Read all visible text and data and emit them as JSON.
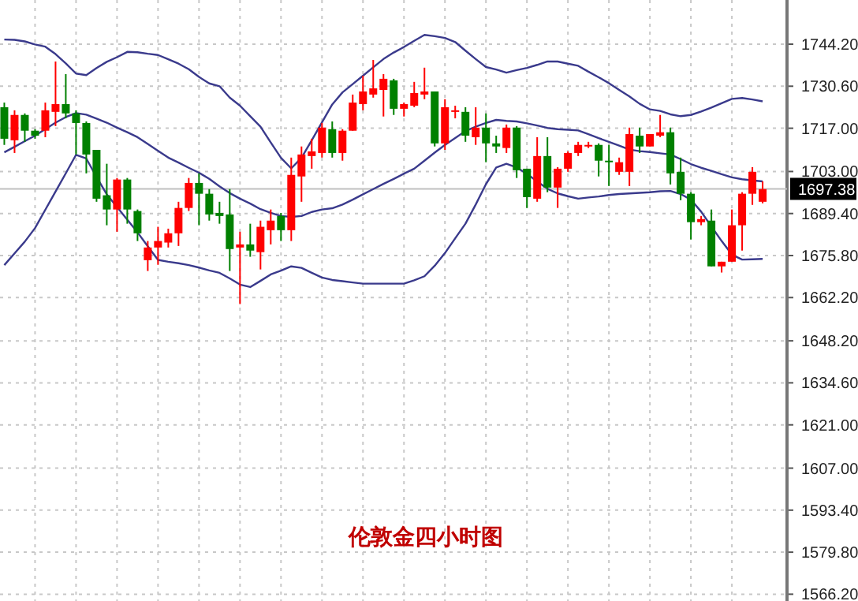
{
  "chart_data": {
    "type": "candlestick",
    "title": "伦敦金四小时图",
    "categories": [
      null,
      null,
      null,
      null,
      null,
      null,
      null,
      null,
      null,
      null,
      null,
      null,
      null,
      null,
      null,
      null,
      null,
      null,
      null,
      null,
      null,
      null,
      null,
      null,
      null,
      null,
      null,
      null,
      null,
      null,
      null,
      null,
      null,
      null,
      null,
      null,
      null,
      null,
      null,
      null,
      null,
      null,
      null,
      null,
      null,
      null,
      null,
      null,
      null,
      null,
      null,
      null,
      null,
      null,
      null,
      null,
      null,
      null,
      null,
      null,
      null,
      null,
      null,
      null,
      null,
      null,
      null,
      null,
      null,
      null,
      null,
      null,
      null,
      null,
      null
    ],
    "ohlc": [
      [
        1723.8,
        1725.3,
        1711.6,
        1713.6
      ],
      [
        1713.1,
        1722.8,
        1709.0,
        1721.3
      ],
      [
        1721.3,
        1721.8,
        1712.6,
        1716.2
      ],
      [
        1716.2,
        1716.7,
        1713.6,
        1714.6
      ],
      [
        1716.2,
        1725.3,
        1714.1,
        1722.8
      ],
      [
        1722.3,
        1738.6,
        1717.7,
        1724.8
      ],
      [
        1724.8,
        1734.5,
        1720.2,
        1721.8
      ],
      [
        1721.8,
        1722.8,
        1708.5,
        1718.7
      ],
      [
        1718.7,
        1719.2,
        1702.4,
        1708.5
      ],
      [
        1710.0,
        1710.0,
        1693.2,
        1694.2
      ],
      [
        1695.3,
        1705.5,
        1685.6,
        1690.7
      ],
      [
        1690.7,
        1700.9,
        1683.5,
        1700.4
      ],
      [
        1700.4,
        1700.9,
        1686.1,
        1690.7
      ],
      [
        1690.2,
        1690.7,
        1680.5,
        1683.0
      ],
      [
        1674.3,
        1680.5,
        1670.8,
        1678.4
      ],
      [
        1678.4,
        1685.1,
        1672.8,
        1680.5
      ],
      [
        1680.0,
        1684.5,
        1678.4,
        1683.0
      ],
      [
        1683.0,
        1693.2,
        1678.9,
        1691.2
      ],
      [
        1691.2,
        1700.9,
        1690.2,
        1699.3
      ],
      [
        1699.3,
        1702.4,
        1685.6,
        1695.8
      ],
      [
        1695.8,
        1697.3,
        1687.1,
        1689.1
      ],
      [
        1689.6,
        1693.2,
        1686.1,
        1688.6
      ],
      [
        1689.1,
        1697.3,
        1670.8,
        1677.9
      ],
      [
        1678.4,
        1683.5,
        1660.1,
        1679.4
      ],
      [
        1679.4,
        1686.1,
        1675.4,
        1677.4
      ],
      [
        1676.9,
        1687.1,
        1671.3,
        1685.1
      ],
      [
        1684.0,
        1690.7,
        1679.4,
        1687.1
      ],
      [
        1688.6,
        1689.6,
        1680.5,
        1684.0
      ],
      [
        1684.0,
        1707.5,
        1680.5,
        1701.9
      ],
      [
        1701.4,
        1711.1,
        1693.2,
        1708.5
      ],
      [
        1708.0,
        1713.6,
        1703.9,
        1709.5
      ],
      [
        1709.0,
        1718.7,
        1707.5,
        1717.2
      ],
      [
        1716.7,
        1719.2,
        1707.5,
        1709.0
      ],
      [
        1709.0,
        1716.7,
        1706.5,
        1716.2
      ],
      [
        1716.2,
        1727.9,
        1716.2,
        1725.3
      ],
      [
        1724.8,
        1734.0,
        1722.8,
        1728.9
      ],
      [
        1727.9,
        1739.1,
        1726.9,
        1729.9
      ],
      [
        1729.4,
        1734.5,
        1720.8,
        1733.0
      ],
      [
        1732.5,
        1733.0,
        1721.3,
        1723.3
      ],
      [
        1723.3,
        1725.3,
        1720.8,
        1724.8
      ],
      [
        1724.3,
        1732.0,
        1723.8,
        1728.4
      ],
      [
        1727.9,
        1736.6,
        1726.4,
        1728.9
      ],
      [
        1728.9,
        1728.9,
        1711.1,
        1712.1
      ],
      [
        1712.1,
        1726.4,
        1710.0,
        1723.8
      ],
      [
        1722.3,
        1724.3,
        1720.2,
        1722.8
      ],
      [
        1722.3,
        1723.8,
        1712.6,
        1714.6
      ],
      [
        1714.1,
        1723.8,
        1711.6,
        1717.2
      ],
      [
        1717.2,
        1721.8,
        1706.0,
        1712.1
      ],
      [
        1712.1,
        1714.6,
        1709.0,
        1711.1
      ],
      [
        1710.6,
        1718.2,
        1709.0,
        1717.2
      ],
      [
        1717.2,
        1717.7,
        1700.9,
        1703.4
      ],
      [
        1703.9,
        1703.9,
        1691.2,
        1694.7
      ],
      [
        1694.2,
        1714.1,
        1693.2,
        1708.0
      ],
      [
        1708.0,
        1714.1,
        1696.3,
        1697.8
      ],
      [
        1697.8,
        1704.4,
        1691.2,
        1703.9
      ],
      [
        1703.9,
        1709.5,
        1702.9,
        1709.0
      ],
      [
        1709.0,
        1712.6,
        1708.0,
        1711.6
      ],
      [
        1711.1,
        1712.6,
        1710.6,
        1711.6
      ],
      [
        1711.6,
        1712.1,
        1701.4,
        1706.5
      ],
      [
        1706.5,
        1711.6,
        1698.3,
        1706.0
      ],
      [
        1702.9,
        1707.5,
        1701.9,
        1706.0
      ],
      [
        1702.9,
        1717.2,
        1698.3,
        1715.1
      ],
      [
        1714.6,
        1717.2,
        1709.0,
        1711.1
      ],
      [
        1711.1,
        1715.1,
        1711.1,
        1715.1
      ],
      [
        1714.6,
        1721.3,
        1714.1,
        1715.7
      ],
      [
        1715.7,
        1717.2,
        1698.8,
        1702.4
      ],
      [
        1702.9,
        1707.5,
        1693.7,
        1695.8
      ],
      [
        1695.8,
        1696.3,
        1681.0,
        1686.6
      ],
      [
        1686.6,
        1688.6,
        1685.6,
        1687.6
      ],
      [
        1687.1,
        1690.7,
        1672.3,
        1672.3
      ],
      [
        1672.3,
        1673.8,
        1670.3,
        1673.8
      ],
      [
        1673.8,
        1690.7,
        1673.8,
        1685.6
      ],
      [
        1685.6,
        1696.3,
        1677.4,
        1695.8
      ],
      [
        1695.8,
        1704.4,
        1692.2,
        1702.9
      ],
      [
        1693.2,
        1699.8,
        1692.7,
        1697.3
      ]
    ],
    "series": [
      {
        "type": "line",
        "color": "#3a3a8c",
        "values": [
          1745.7,
          1745.6,
          1745.1,
          1744.1,
          1743.4,
          1741.0,
          1738.0,
          1734.7,
          1734.2,
          1736.5,
          1738.5,
          1740.0,
          1741.7,
          1741.6,
          1741.1,
          1740.7,
          1739.3,
          1737.9,
          1736.1,
          1733.6,
          1731.5,
          1730.6,
          1726.9,
          1724.3,
          1720.9,
          1717.5,
          1712.4,
          1707.4,
          1704.0,
          1707.4,
          1713.1,
          1718.9,
          1724.7,
          1728.6,
          1731.3,
          1734.0,
          1736.7,
          1739.4,
          1741.5,
          1743.3,
          1745.3,
          1747.2,
          1746.8,
          1746.2,
          1744.9,
          1742.1,
          1739.4,
          1736.8,
          1736.0,
          1735.0,
          1735.8,
          1736.5,
          1737.5,
          1738.6,
          1738.6,
          1737.9,
          1737.2,
          1735.3,
          1733.5,
          1731.6,
          1729.4,
          1727.3,
          1724.9,
          1723.1,
          1722.6,
          1721.5,
          1720.9,
          1721.3,
          1722.4,
          1723.7,
          1725.1,
          1726.5,
          1726.8,
          1726.3,
          1725.7
        ]
      },
      {
        "type": "line",
        "color": "#3a3a8c",
        "values": [
          1709.2,
          1711.0,
          1712.8,
          1714.6,
          1716.7,
          1718.8,
          1720.6,
          1721.9,
          1721.4,
          1720.1,
          1718.8,
          1717.2,
          1715.7,
          1714.1,
          1711.9,
          1709.7,
          1707.5,
          1705.9,
          1704.2,
          1702.6,
          1700.6,
          1698.2,
          1696.0,
          1694.2,
          1692.6,
          1690.8,
          1689.6,
          1688.6,
          1688.3,
          1688.6,
          1689.9,
          1690.7,
          1691.1,
          1692.3,
          1693.9,
          1695.6,
          1697.3,
          1699.0,
          1700.6,
          1702.3,
          1703.9,
          1706.5,
          1709.1,
          1711.6,
          1713.8,
          1716.1,
          1717.5,
          1718.7,
          1719.7,
          1719.4,
          1719.2,
          1718.6,
          1717.9,
          1717.1,
          1716.7,
          1716.5,
          1716.3,
          1715.1,
          1713.8,
          1712.6,
          1711.4,
          1710.1,
          1709.6,
          1709.3,
          1708.9,
          1708.5,
          1707.0,
          1705.4,
          1704.2,
          1703.2,
          1702.1,
          1701.1,
          1700.5,
          1700.1,
          1699.8
        ]
      },
      {
        "type": "line",
        "color": "#3a3a8c",
        "values": [
          1672.7,
          1676.5,
          1680.3,
          1684.7,
          1690.6,
          1696.5,
          1702.4,
          1708.4,
          1707.2,
          1701.2,
          1695.6,
          1691.5,
          1687.4,
          1683.3,
          1678.8,
          1674.4,
          1673.8,
          1673.3,
          1672.7,
          1671.9,
          1671.0,
          1670.2,
          1668.4,
          1666.4,
          1665.6,
          1667.6,
          1669.7,
          1670.9,
          1672.3,
          1671.8,
          1670.2,
          1668.7,
          1667.9,
          1667.5,
          1667.1,
          1666.7,
          1666.7,
          1666.7,
          1666.7,
          1666.7,
          1667.8,
          1669.1,
          1672.5,
          1676.6,
          1681.4,
          1686.1,
          1692.3,
          1698.9,
          1704.3,
          1705.5,
          1704.3,
          1702.2,
          1699.8,
          1697.4,
          1695.9,
          1695.0,
          1694.2,
          1694.6,
          1694.9,
          1695.4,
          1695.7,
          1695.9,
          1696.1,
          1696.3,
          1696.6,
          1696.7,
          1695.7,
          1693.9,
          1690.0,
          1685.2,
          1680.5,
          1676.1,
          1674.5,
          1674.6,
          1674.7
        ]
      }
    ],
    "ylim": [
      1564,
      1758.5
    ],
    "yticks": [
      {
        "value": 1566.2,
        "label": "1566.20"
      },
      {
        "value": 1579.8,
        "label": "1579.80"
      },
      {
        "value": 1593.4,
        "label": "1593.40"
      },
      {
        "value": 1607,
        "label": "1607.00"
      },
      {
        "value": 1621,
        "label": "1621.00"
      },
      {
        "value": 1634.6,
        "label": "1634.60"
      },
      {
        "value": 1648.2,
        "label": "1648.20"
      },
      {
        "value": 1662.2,
        "label": "1662.20"
      },
      {
        "value": 1675.8,
        "label": "1675.80"
      },
      {
        "value": 1689.4,
        "label": "1689.40"
      },
      {
        "value": 1703,
        "label": "1703.00"
      },
      {
        "value": 1717,
        "label": "1717.00"
      },
      {
        "value": 1730.6,
        "label": "1730.60"
      },
      {
        "value": 1744.2,
        "label": "1744.20"
      }
    ],
    "ref_lines": [
      {
        "axis": "y",
        "value": 1697.38,
        "label": "1697.38",
        "color": "#c0c0c0"
      }
    ],
    "grid": true,
    "tick_labels": "y"
  }
}
